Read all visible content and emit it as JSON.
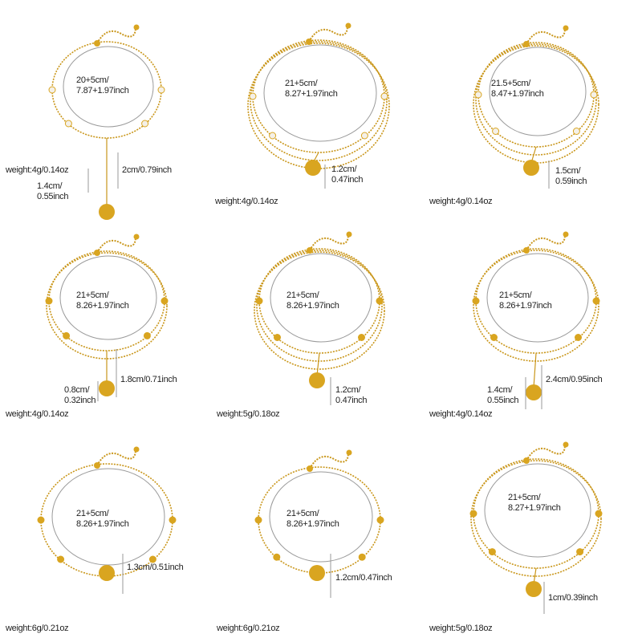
{
  "colors": {
    "gold": "#d9a520",
    "chain": "#c9961a",
    "ring": "#9a9a9a",
    "pearl": "#f4f0e8"
  },
  "products": [
    {
      "size": [
        "20+5cm/",
        "7.87+1.97inch"
      ],
      "weight": "weight:4g/0.14oz",
      "dims": [
        "2cm/0.79inch",
        "1.4cm/",
        "0.55inch"
      ]
    },
    {
      "size": [
        "21+5cm/",
        "8.27+1.97inch"
      ],
      "weight": "weight:4g/0.14oz",
      "dims": [
        "1.2cm/",
        "0.47inch"
      ]
    },
    {
      "size": [
        "21.5+5cm/",
        "8.47+1.97inch"
      ],
      "weight": "weight:4g/0.14oz",
      "dims": [
        "1.5cm/",
        "0.59inch"
      ]
    },
    {
      "size": [
        "21+5cm/",
        "8.26+1.97inch"
      ],
      "weight": "weight:4g/0.14oz",
      "dims": [
        "1.8cm/0.71inch",
        "0.8cm/",
        "0.32inch"
      ]
    },
    {
      "size": [
        "21+5cm/",
        "8.26+1.97inch"
      ],
      "weight": "weight:5g/0.18oz",
      "dims": [
        "1.2cm/",
        "0.47inch"
      ]
    },
    {
      "size": [
        "21+5cm/",
        "8.26+1.97inch"
      ],
      "weight": "weight:4g/0.14oz",
      "dims": [
        "2.4cm/0.95inch",
        "1.4cm/",
        "0.55inch"
      ]
    },
    {
      "size": [
        "21+5cm/",
        "8.26+1.97inch"
      ],
      "weight": "weight:6g/0.21oz",
      "dims": [
        "1.3cm/0.51inch"
      ]
    },
    {
      "size": [
        "21+5cm/",
        "8.26+1.97inch"
      ],
      "weight": "weight:6g/0.21oz",
      "dims": [
        "1.2cm/0.47inch"
      ]
    },
    {
      "size": [
        "21+5cm/",
        "8.27+1.97inch"
      ],
      "weight": "weight:5g/0.18oz",
      "dims": [
        "1cm/0.39inch"
      ]
    }
  ]
}
